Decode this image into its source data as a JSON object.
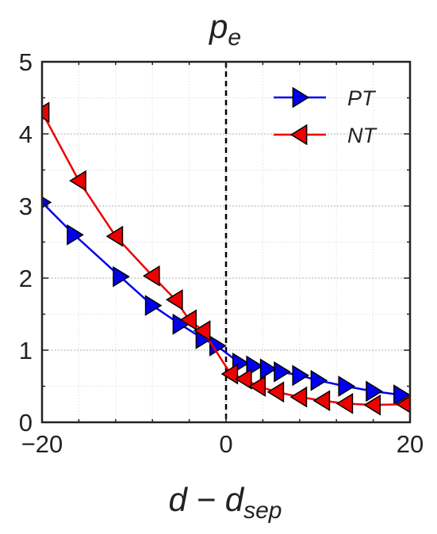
{
  "chart_data": {
    "type": "line",
    "title_main": "p",
    "title_sub": "e",
    "xlabel_main": "d − d",
    "xlabel_sub": "sep",
    "ylabel": "",
    "xlim": [
      -20,
      20
    ],
    "ylim": [
      0,
      5
    ],
    "xticks": [
      -20,
      0,
      20
    ],
    "xtick_labels": [
      "−20",
      "0",
      "20"
    ],
    "yticks": [
      0,
      1,
      2,
      3,
      4,
      5
    ],
    "ytick_labels": [
      "0",
      "1",
      "2",
      "3",
      "4",
      "5"
    ],
    "grid": true,
    "legend_position": "top-right",
    "reference_line_x": 0,
    "series": [
      {
        "name": "PT",
        "color": "#0000ee",
        "marker": "triangle-right",
        "x": [
          -20,
          -16.5,
          -11.5,
          -8,
          -5,
          -2.5,
          -1,
          1.5,
          3,
          4.5,
          6,
          8,
          10,
          13,
          16,
          19
        ],
        "y": [
          3.05,
          2.6,
          2.02,
          1.62,
          1.36,
          1.16,
          1.06,
          0.82,
          0.78,
          0.74,
          0.7,
          0.65,
          0.58,
          0.5,
          0.43,
          0.38
        ]
      },
      {
        "name": "NT",
        "color": "#ee0000",
        "marker": "triangle-left",
        "x": [
          -20,
          -16,
          -12,
          -8,
          -5.5,
          -4,
          -2.5,
          0.5,
          2,
          3.5,
          5.5,
          8,
          10.5,
          13,
          16,
          19.5
        ],
        "y": [
          4.3,
          3.35,
          2.58,
          2.03,
          1.7,
          1.42,
          1.27,
          0.67,
          0.6,
          0.5,
          0.42,
          0.35,
          0.3,
          0.26,
          0.24,
          0.25
        ]
      }
    ]
  }
}
